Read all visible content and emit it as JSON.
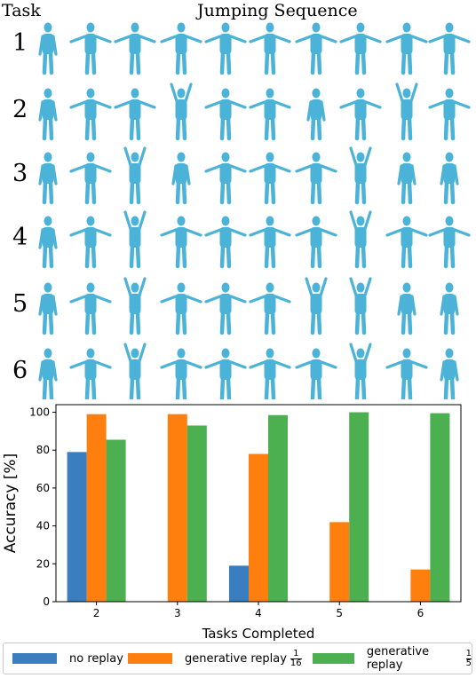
{
  "panel": {
    "task_header": "Task",
    "sequence_title": "Jumping Sequence",
    "task_numbers": [
      "1",
      "2",
      "3",
      "4",
      "5",
      "6"
    ],
    "figure_color": "#4bb2d8",
    "poses": [
      [
        "down",
        "side",
        "side",
        "side",
        "side",
        "side",
        "side",
        "side",
        "side",
        "side"
      ],
      [
        "down",
        "side",
        "side",
        "up",
        "side",
        "side",
        "down",
        "side",
        "up",
        "side"
      ],
      [
        "down",
        "side",
        "up",
        "down",
        "side",
        "side",
        "side",
        "up",
        "down",
        "down"
      ],
      [
        "down",
        "side",
        "up",
        "side",
        "side",
        "side",
        "side",
        "up",
        "side",
        "side"
      ],
      [
        "down",
        "side",
        "up",
        "side",
        "side",
        "side",
        "up",
        "up",
        "down",
        "down"
      ],
      [
        "down",
        "side",
        "up",
        "side",
        "side",
        "side",
        "side",
        "up",
        "side",
        "down"
      ]
    ]
  },
  "chart_data": {
    "type": "bar",
    "categories": [
      "2",
      "3",
      "4",
      "5",
      "6"
    ],
    "series": [
      {
        "name": "no replay",
        "color": "#3a7ebf",
        "values": [
          79,
          null,
          19,
          null,
          null
        ]
      },
      {
        "name": "generative replay",
        "fraction": [
          "1",
          "16"
        ],
        "color": "#ff7f0e",
        "values": [
          99,
          99,
          78,
          42,
          17
        ]
      },
      {
        "name": "generative replay",
        "fraction": [
          "1",
          "5"
        ],
        "color": "#4caf50",
        "values": [
          85.5,
          93,
          98.5,
          100,
          99.5
        ]
      }
    ],
    "yticks": [
      "0",
      "20",
      "40",
      "60",
      "80",
      "100"
    ],
    "xlabel": "Tasks Completed",
    "ylabel": "Accuracy [%]",
    "ylim": [
      0,
      104
    ],
    "grid": false,
    "legend_position": "bottom"
  }
}
